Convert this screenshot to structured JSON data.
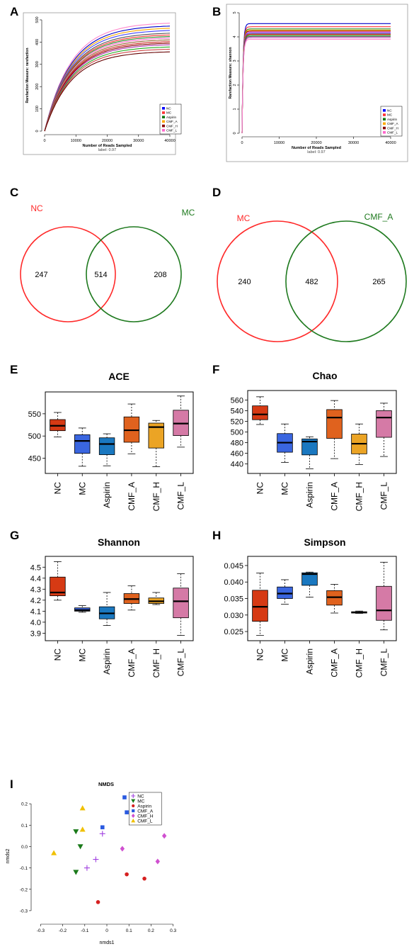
{
  "panels": {
    "A": "A",
    "B": "B",
    "C": "C",
    "D": "D",
    "E": "E",
    "F": "F",
    "G": "G",
    "H": "H",
    "I": "I"
  },
  "colors": {
    "NC": "#0000ff",
    "MC": "#ff3333",
    "Aspirin": "#117711",
    "CMF_A": "#ffaa00",
    "CMF_H": "#880000",
    "CMF_L": "#ff66cc",
    "box_NC": "#d63a14",
    "box_MC": "#3a66e0",
    "box_Aspirin": "#1a78c0",
    "box_CMF_A": "#e0621e",
    "box_CMF_H": "#eba425",
    "box_CMF_L": "#d57aa6",
    "venn_left": "#ff2a2a",
    "venn_right": "#1f7a1f"
  },
  "chart_data": [
    {
      "id": "A",
      "type": "line",
      "xlabel": "Number of Reads Sampled",
      "subtitle": "label: 0.97",
      "ylabel": "Rarefaction Measure: rarefaction",
      "xlim": [
        0,
        40000
      ],
      "ylim": [
        0,
        500
      ],
      "xticks": [
        "0",
        "10000",
        "20000",
        "30000",
        "40000"
      ],
      "yticks": [
        "0",
        "100",
        "200",
        "300",
        "400",
        "500"
      ],
      "legend": [
        "NC",
        "MC",
        "Aspirin",
        "CMF_A",
        "CMF_H",
        "CMF_L"
      ],
      "series": [
        {
          "end": 485,
          "color": "#ff88cc"
        },
        {
          "end": 472,
          "color": "#0000cc"
        },
        {
          "end": 462,
          "color": "#ffaa00"
        },
        {
          "end": 452,
          "color": "#4444ff"
        },
        {
          "end": 440,
          "color": "#555555"
        },
        {
          "end": 432,
          "color": "#ff3333"
        },
        {
          "end": 425,
          "color": "#228822"
        },
        {
          "end": 418,
          "color": "#ff66cc"
        },
        {
          "end": 410,
          "color": "#996633"
        },
        {
          "end": 402,
          "color": "#cc2222"
        },
        {
          "end": 395,
          "color": "#880000"
        },
        {
          "end": 388,
          "color": "#aa33aa"
        },
        {
          "end": 378,
          "color": "#22aa22"
        },
        {
          "end": 368,
          "color": "#cc4444"
        },
        {
          "end": 356,
          "color": "#660000"
        }
      ]
    },
    {
      "id": "B",
      "type": "line",
      "xlabel": "Number of Reads Sampled",
      "subtitle": "label: 0.97",
      "ylabel": "Rarefaction Measure: shannon",
      "xlim": [
        0,
        40000
      ],
      "ylim": [
        0,
        5
      ],
      "xticks": [
        "0",
        "10000",
        "20000",
        "30000",
        "40000"
      ],
      "yticks": [
        "0",
        "1",
        "2",
        "3",
        "4",
        "5"
      ],
      "legend": [
        "NC",
        "MC",
        "Aspirin",
        "CMF_A",
        "CMF_H",
        "CMF_L"
      ],
      "series": [
        {
          "end": 4.55,
          "color": "#0000cc"
        },
        {
          "end": 4.42,
          "color": "#ff3333"
        },
        {
          "end": 4.33,
          "color": "#228822"
        },
        {
          "end": 4.28,
          "color": "#ffaa00"
        },
        {
          "end": 4.24,
          "color": "#880000"
        },
        {
          "end": 4.2,
          "color": "#ff66cc"
        },
        {
          "end": 4.16,
          "color": "#4444ff"
        },
        {
          "end": 4.12,
          "color": "#996633"
        },
        {
          "end": 4.1,
          "color": "#cc2222"
        },
        {
          "end": 4.06,
          "color": "#22aa22"
        },
        {
          "end": 4.02,
          "color": "#555555"
        },
        {
          "end": 3.97,
          "color": "#aa33aa"
        },
        {
          "end": 3.9,
          "color": "#ff88cc"
        }
      ]
    },
    {
      "id": "C",
      "type": "venn",
      "left_label": "NC",
      "right_label": "MC",
      "left_only": "247",
      "both": "514",
      "right_only": "208"
    },
    {
      "id": "D",
      "type": "venn",
      "left_label": "MC",
      "right_label": "CMF_A",
      "left_only": "240",
      "both": "482",
      "right_only": "265"
    },
    {
      "id": "E",
      "type": "box",
      "title": "ACE",
      "categories": [
        "NC",
        "MC",
        "Aspirin",
        "CMF_A",
        "CMF_H",
        "CMF_L"
      ],
      "ylim": [
        425,
        590
      ],
      "yticks": [
        450,
        500,
        550
      ],
      "boxes": [
        {
          "min": 498,
          "q1": 512,
          "median": 523,
          "q3": 537,
          "max": 553
        },
        {
          "min": 432,
          "q1": 461,
          "median": 489,
          "q3": 503,
          "max": 518
        },
        {
          "min": 433,
          "q1": 458,
          "median": 482,
          "q3": 496,
          "max": 505
        },
        {
          "min": 460,
          "q1": 486,
          "median": 513,
          "q3": 543,
          "max": 572
        },
        {
          "min": 431,
          "q1": 473,
          "median": 520,
          "q3": 529,
          "max": 535
        },
        {
          "min": 475,
          "q1": 501,
          "median": 528,
          "q3": 558,
          "max": 590
        }
      ]
    },
    {
      "id": "F",
      "type": "box",
      "title": "Chao",
      "categories": [
        "NC",
        "MC",
        "Aspirin",
        "CMF_A",
        "CMF_H",
        "CMF_L"
      ],
      "ylim": [
        430,
        570
      ],
      "yticks": [
        440,
        460,
        480,
        500,
        520,
        540,
        560
      ],
      "boxes": [
        {
          "min": 514,
          "q1": 523,
          "median": 533,
          "q3": 549,
          "max": 566
        },
        {
          "min": 443,
          "q1": 462,
          "median": 480,
          "q3": 497,
          "max": 515
        },
        {
          "min": 431,
          "q1": 457,
          "median": 482,
          "q3": 487,
          "max": 491
        },
        {
          "min": 450,
          "q1": 488,
          "median": 527,
          "q3": 542,
          "max": 559
        },
        {
          "min": 439,
          "q1": 459,
          "median": 478,
          "q3": 496,
          "max": 515
        },
        {
          "min": 454,
          "q1": 490,
          "median": 527,
          "q3": 540,
          "max": 554
        }
      ]
    },
    {
      "id": "G",
      "type": "box",
      "title": "Shannon",
      "categories": [
        "NC",
        "MC",
        "Aspirin",
        "CMF_A",
        "CMF_H",
        "CMF_L"
      ],
      "ylim": [
        3.87,
        4.56
      ],
      "yticks": [
        3.9,
        4.0,
        4.1,
        4.2,
        4.3,
        4.4,
        4.5
      ],
      "yfmt": 1,
      "boxes": [
        {
          "min": 4.2,
          "q1": 4.24,
          "median": 4.27,
          "q3": 4.41,
          "max": 4.55
        },
        {
          "min": 4.09,
          "q1": 4.1,
          "median": 4.11,
          "q3": 4.13,
          "max": 4.15
        },
        {
          "min": 3.97,
          "q1": 4.03,
          "median": 4.08,
          "q3": 4.14,
          "max": 4.27
        },
        {
          "min": 4.11,
          "q1": 4.17,
          "median": 4.21,
          "q3": 4.26,
          "max": 4.33
        },
        {
          "min": 4.16,
          "q1": 4.17,
          "median": 4.19,
          "q3": 4.22,
          "max": 4.27
        },
        {
          "min": 3.88,
          "q1": 4.04,
          "median": 4.19,
          "q3": 4.31,
          "max": 4.44
        }
      ]
    },
    {
      "id": "H",
      "type": "box",
      "title": "Simpson",
      "categories": [
        "NC",
        "MC",
        "Aspirin",
        "CMF_A",
        "CMF_H",
        "CMF_L"
      ],
      "ylim": [
        0.0235,
        0.0465
      ],
      "yticks": [
        0.025,
        0.03,
        0.035,
        0.04,
        0.045
      ],
      "yfmt": 3,
      "boxes": [
        {
          "min": 0.0238,
          "q1": 0.0281,
          "median": 0.0325,
          "q3": 0.0375,
          "max": 0.0427
        },
        {
          "min": 0.0333,
          "q1": 0.035,
          "median": 0.0365,
          "q3": 0.0385,
          "max": 0.0407
        },
        {
          "min": 0.0354,
          "q1": 0.039,
          "median": 0.0424,
          "q3": 0.0428,
          "max": 0.043
        },
        {
          "min": 0.0306,
          "q1": 0.033,
          "median": 0.0354,
          "q3": 0.0374,
          "max": 0.0393
        },
        {
          "min": 0.0305,
          "q1": 0.0306,
          "median": 0.0308,
          "q3": 0.031,
          "max": 0.0312
        },
        {
          "min": 0.0255,
          "q1": 0.0284,
          "median": 0.0314,
          "q3": 0.0387,
          "max": 0.046
        }
      ]
    },
    {
      "id": "I",
      "type": "scatter",
      "title": "NMDS",
      "xlabel": "nmds1",
      "ylabel": "nmds2",
      "xlim": [
        -0.33,
        0.33
      ],
      "ylim": [
        -0.35,
        0.26
      ],
      "xticks": [
        "-0.3",
        "-0.2",
        "-0.1",
        "0",
        "0.1",
        "0.2",
        "0.3"
      ],
      "yticks": [
        "-0.3",
        "-0.2",
        "-0.1",
        "0.0",
        "0.1",
        "0.2"
      ],
      "legend": [
        "NC",
        "MC",
        "Aspirin",
        "CMF_A",
        "CMF_H",
        "CMF_L"
      ],
      "series": [
        {
          "name": "NC",
          "shape": "plus",
          "color": "#a040e0",
          "points": [
            [
              -0.02,
              0.06
            ],
            [
              -0.05,
              -0.06
            ],
            [
              -0.09,
              -0.1
            ]
          ]
        },
        {
          "name": "MC",
          "shape": "tri-down",
          "color": "#1a7a1a",
          "points": [
            [
              -0.14,
              0.07
            ],
            [
              -0.12,
              0.0
            ],
            [
              -0.14,
              -0.12
            ]
          ]
        },
        {
          "name": "Aspirin",
          "shape": "circle",
          "color": "#d62020",
          "points": [
            [
              -0.04,
              -0.26
            ],
            [
              0.09,
              -0.13
            ],
            [
              0.17,
              -0.15
            ]
          ]
        },
        {
          "name": "CMF_A",
          "shape": "square",
          "color": "#2a5ae0",
          "points": [
            [
              -0.02,
              0.09
            ],
            [
              0.08,
              0.23
            ],
            [
              0.09,
              0.16
            ]
          ]
        },
        {
          "name": "CMF_H",
          "shape": "diamond",
          "color": "#d050d0",
          "points": [
            [
              0.07,
              -0.01
            ],
            [
              0.23,
              -0.07
            ],
            [
              0.26,
              0.05
            ]
          ]
        },
        {
          "name": "CMF_L",
          "shape": "tri-up",
          "color": "#f0c000",
          "points": [
            [
              -0.24,
              -0.03
            ],
            [
              -0.11,
              0.18
            ],
            [
              -0.11,
              0.08
            ]
          ]
        }
      ]
    }
  ]
}
